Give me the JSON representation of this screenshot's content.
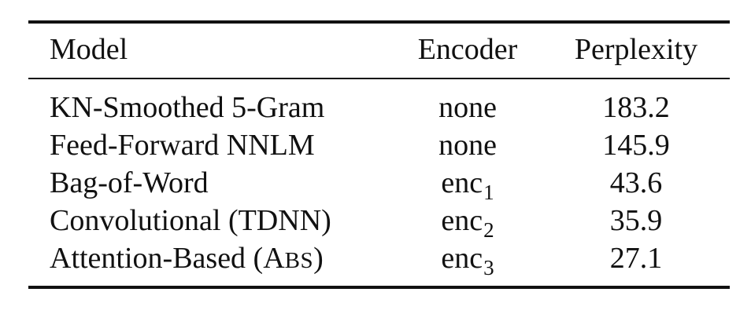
{
  "table": {
    "headers": {
      "model": "Model",
      "encoder": "Encoder",
      "perplexity": "Perplexity"
    },
    "rows": [
      {
        "model": "KN-Smoothed 5-Gram",
        "encoder": "none",
        "encoder_sub": "",
        "perplexity": "183.2"
      },
      {
        "model": "Feed-Forward NNLM",
        "encoder": "none",
        "encoder_sub": "",
        "perplexity": "145.9"
      },
      {
        "model": "Bag-of-Word",
        "encoder": "enc",
        "encoder_sub": "1",
        "perplexity": "43.6"
      },
      {
        "model": "Convolutional (TDNN)",
        "encoder": "enc",
        "encoder_sub": "2",
        "perplexity": "35.9"
      },
      {
        "model_prefix": "Attention-Based (A",
        "model_smallcaps": "BS",
        "model_suffix": ")",
        "encoder": "enc",
        "encoder_sub": "3",
        "perplexity": "27.1"
      }
    ]
  }
}
